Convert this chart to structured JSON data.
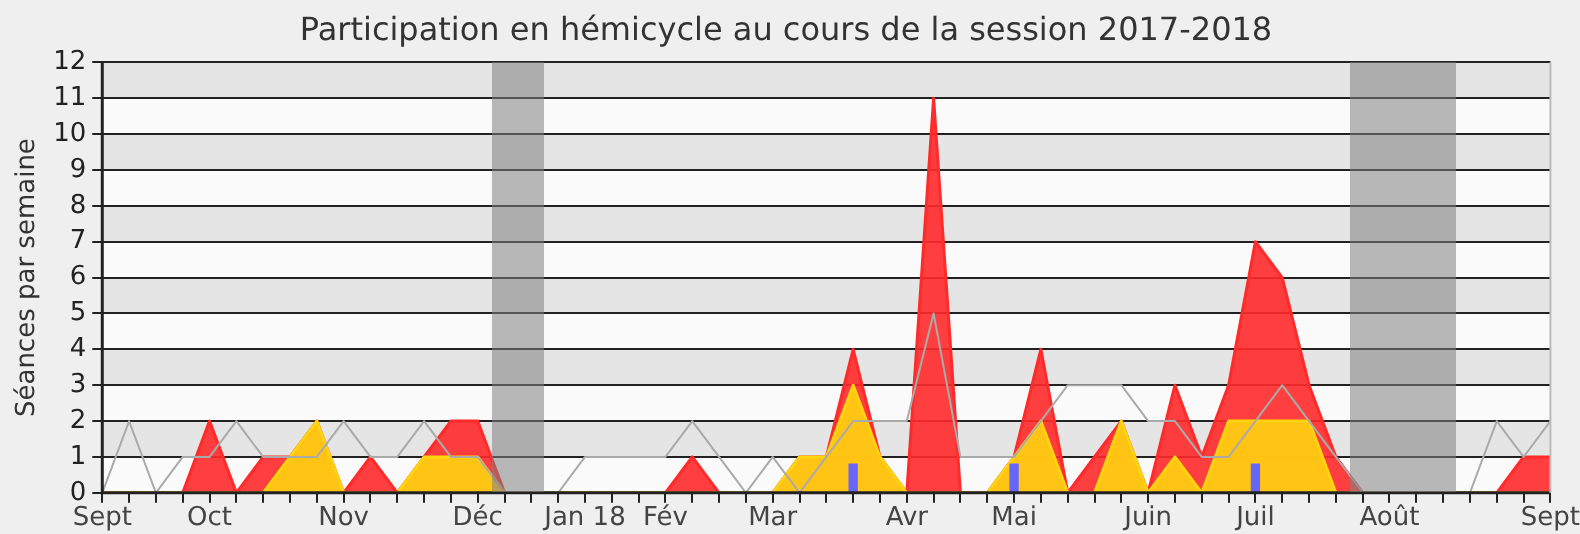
{
  "chart_data": {
    "type": "area",
    "title": "Participation en hémicycle au cours de la session 2017-2018",
    "ylabel": "Séances par semaine",
    "categories": [
      "Sept",
      null,
      null,
      null,
      "Oct",
      null,
      null,
      null,
      null,
      "Nov",
      null,
      null,
      null,
      null,
      "Déc",
      null,
      null,
      null,
      "Jan 18",
      null,
      null,
      "Fév",
      null,
      null,
      null,
      "Mar",
      null,
      null,
      null,
      null,
      "Avr",
      null,
      null,
      null,
      "Mai",
      null,
      null,
      null,
      null,
      "Juin",
      null,
      null,
      null,
      "Juil",
      null,
      null,
      null,
      null,
      "Août",
      null,
      null,
      null,
      null,
      null,
      "Sept"
    ],
    "series": [
      {
        "type": "line",
        "color": "#aaaaaa",
        "values": [
          0,
          2,
          0,
          1,
          1,
          2,
          1,
          1,
          1,
          2,
          1,
          1,
          2,
          1,
          1,
          0,
          0,
          0,
          1,
          1,
          1,
          1,
          2,
          1,
          0,
          1,
          0,
          1,
          2,
          2,
          2,
          5,
          1,
          1,
          1,
          2,
          3,
          3,
          3,
          2,
          2,
          1,
          1,
          2,
          3,
          2,
          1,
          0,
          0,
          0,
          0,
          0,
          2,
          1,
          2
        ]
      },
      {
        "color": "#ff2a2a",
        "values": [
          0,
          0,
          0,
          0,
          2,
          0,
          1,
          1,
          2,
          0,
          1,
          0,
          1,
          2,
          2,
          0,
          0,
          0,
          0,
          0,
          0,
          0,
          1,
          0,
          0,
          0,
          1,
          1,
          4,
          1,
          0,
          11,
          0,
          0,
          1,
          4,
          0,
          1,
          2,
          0,
          3,
          1,
          3,
          7,
          6,
          3,
          1,
          0,
          0,
          0,
          0,
          0,
          0,
          1,
          1
        ]
      },
      {
        "color": "#ffd30f",
        "values": [
          0,
          0,
          0,
          0,
          0,
          0,
          0,
          1,
          2,
          0,
          0,
          0,
          1,
          1,
          1,
          0,
          0,
          0,
          0,
          0,
          0,
          0,
          0,
          0,
          0,
          0,
          1,
          1,
          3,
          1,
          0,
          0,
          0,
          0,
          1,
          2,
          0,
          0,
          2,
          0,
          1,
          0,
          2,
          2,
          2,
          2,
          0,
          0,
          0,
          0,
          0,
          0,
          0,
          0,
          0
        ]
      },
      {
        "type": "bar",
        "color": "#6666ff",
        "values": [
          null,
          null,
          null,
          null,
          null,
          null,
          null,
          null,
          null,
          null,
          null,
          null,
          null,
          null,
          null,
          null,
          null,
          null,
          null,
          null,
          null,
          null,
          null,
          null,
          null,
          null,
          null,
          null,
          0.8,
          null,
          null,
          null,
          null,
          null,
          0.8,
          null,
          null,
          null,
          null,
          null,
          null,
          null,
          null,
          0.8,
          null,
          null,
          null,
          null,
          null,
          null,
          null,
          null,
          null,
          null,
          null
        ]
      }
    ],
    "ylim": [
      0,
      12
    ],
    "yticks": [
      0,
      1,
      2,
      3,
      4,
      5,
      6,
      7,
      8,
      9,
      10,
      11,
      12
    ],
    "grid": "y",
    "legend": false,
    "marker": "none",
    "line_style": "solid"
  }
}
